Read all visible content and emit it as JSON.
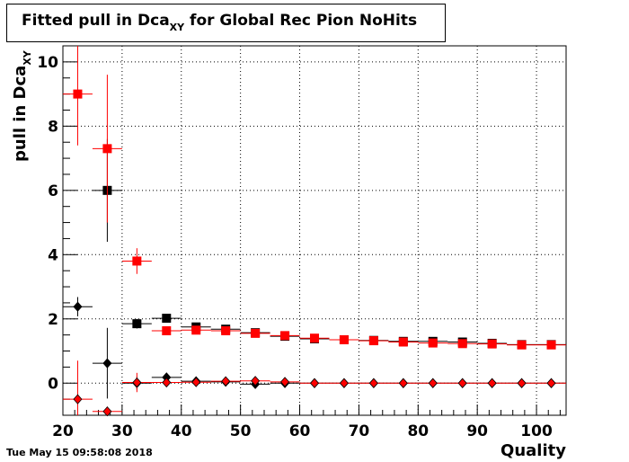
{
  "chart_data": {
    "type": "scatter",
    "title": {
      "prefix": "Fitted pull in Dca",
      "subscript": "XY",
      "suffix": " for Global Rec Pion NoHits"
    },
    "ylabel": {
      "main": "pull in Dca",
      "subscript": "XY"
    },
    "xlabel": "Quality",
    "xlim": [
      20,
      105
    ],
    "ylim": [
      -1,
      10.5
    ],
    "xticks": [
      20,
      30,
      40,
      50,
      60,
      70,
      80,
      90,
      100
    ],
    "yticks": [
      0,
      2,
      4,
      6,
      8,
      10
    ],
    "grid": true,
    "x_bin_halfwidth": 2.5,
    "series": [
      {
        "color": "#000000",
        "marker": "square",
        "points": [
          {
            "x": 27.5,
            "y": 6.0,
            "yerr": 1.6
          },
          {
            "x": 32.5,
            "y": 1.85,
            "yerr": 0.15
          },
          {
            "x": 37.5,
            "y": 2.02,
            "yerr": 0.1
          },
          {
            "x": 42.5,
            "y": 1.75,
            "yerr": 0.06
          },
          {
            "x": 47.5,
            "y": 1.68,
            "yerr": 0.05
          },
          {
            "x": 52.5,
            "y": 1.57,
            "yerr": 0.04
          },
          {
            "x": 57.5,
            "y": 1.46,
            "yerr": 0.03
          },
          {
            "x": 62.5,
            "y": 1.38,
            "yerr": 0.03
          },
          {
            "x": 67.5,
            "y": 1.35,
            "yerr": 0.03
          },
          {
            "x": 72.5,
            "y": 1.33,
            "yerr": 0.02
          },
          {
            "x": 77.5,
            "y": 1.3,
            "yerr": 0.02
          },
          {
            "x": 82.5,
            "y": 1.3,
            "yerr": 0.02
          },
          {
            "x": 87.5,
            "y": 1.28,
            "yerr": 0.02
          },
          {
            "x": 92.5,
            "y": 1.24,
            "yerr": 0.02
          },
          {
            "x": 97.5,
            "y": 1.2,
            "yerr": 0.02
          },
          {
            "x": 102.5,
            "y": 1.2,
            "yerr": 0.02
          }
        ]
      },
      {
        "color": "#ff0000",
        "marker": "square",
        "points": [
          {
            "x": 22.5,
            "y": 9.0,
            "yerr": 1.6
          },
          {
            "x": 27.5,
            "y": 7.3,
            "yerr": 2.3
          },
          {
            "x": 32.5,
            "y": 3.8,
            "yerr": 0.4
          },
          {
            "x": 37.5,
            "y": 1.63,
            "yerr": 0.1
          },
          {
            "x": 42.5,
            "y": 1.65,
            "yerr": 0.07
          },
          {
            "x": 47.5,
            "y": 1.63,
            "yerr": 0.06
          },
          {
            "x": 52.5,
            "y": 1.55,
            "yerr": 0.05
          },
          {
            "x": 57.5,
            "y": 1.48,
            "yerr": 0.04
          },
          {
            "x": 62.5,
            "y": 1.4,
            "yerr": 0.03
          },
          {
            "x": 67.5,
            "y": 1.35,
            "yerr": 0.03
          },
          {
            "x": 72.5,
            "y": 1.32,
            "yerr": 0.02
          },
          {
            "x": 77.5,
            "y": 1.28,
            "yerr": 0.02
          },
          {
            "x": 82.5,
            "y": 1.25,
            "yerr": 0.02
          },
          {
            "x": 87.5,
            "y": 1.23,
            "yerr": 0.02
          },
          {
            "x": 92.5,
            "y": 1.22,
            "yerr": 0.02
          },
          {
            "x": 97.5,
            "y": 1.19,
            "yerr": 0.02
          },
          {
            "x": 102.5,
            "y": 1.19,
            "yerr": 0.02
          }
        ]
      },
      {
        "color": "#000000",
        "marker": "diamond",
        "points": [
          {
            "x": 22.5,
            "y": 2.38,
            "yerr": 0.3
          },
          {
            "x": 27.5,
            "y": 0.62,
            "yerr": 1.1
          },
          {
            "x": 32.5,
            "y": 0.0,
            "yerr": 0.2
          },
          {
            "x": 37.5,
            "y": 0.18,
            "yerr": 0.08
          },
          {
            "x": 42.5,
            "y": 0.06,
            "yerr": 0.05
          },
          {
            "x": 47.5,
            "y": 0.04,
            "yerr": 0.04
          },
          {
            "x": 52.5,
            "y": -0.03,
            "yerr": 0.03
          },
          {
            "x": 57.5,
            "y": 0.0,
            "yerr": 0.03
          },
          {
            "x": 62.5,
            "y": 0.0,
            "yerr": 0.02
          },
          {
            "x": 67.5,
            "y": 0.0,
            "yerr": 0.02
          },
          {
            "x": 72.5,
            "y": 0.0,
            "yerr": 0.02
          },
          {
            "x": 77.5,
            "y": 0.0,
            "yerr": 0.02
          },
          {
            "x": 82.5,
            "y": 0.0,
            "yerr": 0.02
          },
          {
            "x": 87.5,
            "y": 0.0,
            "yerr": 0.02
          },
          {
            "x": 92.5,
            "y": 0.0,
            "yerr": 0.02
          },
          {
            "x": 97.5,
            "y": 0.0,
            "yerr": 0.02
          },
          {
            "x": 102.5,
            "y": 0.0,
            "yerr": 0.02
          }
        ]
      },
      {
        "color": "#ff0000",
        "marker": "diamond",
        "points": [
          {
            "x": 22.5,
            "y": -0.5,
            "yerr": 1.2
          },
          {
            "x": 27.5,
            "y": -0.88,
            "yerr": 0.15
          },
          {
            "x": 32.5,
            "y": 0.02,
            "yerr": 0.3
          },
          {
            "x": 37.5,
            "y": 0.02,
            "yerr": 0.08
          },
          {
            "x": 42.5,
            "y": 0.03,
            "yerr": 0.05
          },
          {
            "x": 47.5,
            "y": 0.06,
            "yerr": 0.04
          },
          {
            "x": 52.5,
            "y": 0.07,
            "yerr": 0.03
          },
          {
            "x": 57.5,
            "y": 0.04,
            "yerr": 0.03
          },
          {
            "x": 62.5,
            "y": 0.0,
            "yerr": 0.02
          },
          {
            "x": 67.5,
            "y": 0.0,
            "yerr": 0.02
          },
          {
            "x": 72.5,
            "y": 0.0,
            "yerr": 0.02
          },
          {
            "x": 77.5,
            "y": 0.0,
            "yerr": 0.02
          },
          {
            "x": 82.5,
            "y": 0.0,
            "yerr": 0.02
          },
          {
            "x": 87.5,
            "y": 0.0,
            "yerr": 0.02
          },
          {
            "x": 92.5,
            "y": 0.0,
            "yerr": 0.02
          },
          {
            "x": 97.5,
            "y": 0.0,
            "yerr": 0.02
          },
          {
            "x": 102.5,
            "y": 0.0,
            "yerr": 0.02
          }
        ]
      }
    ]
  },
  "timestamp": "Tue May 15 09:58:08 2018"
}
